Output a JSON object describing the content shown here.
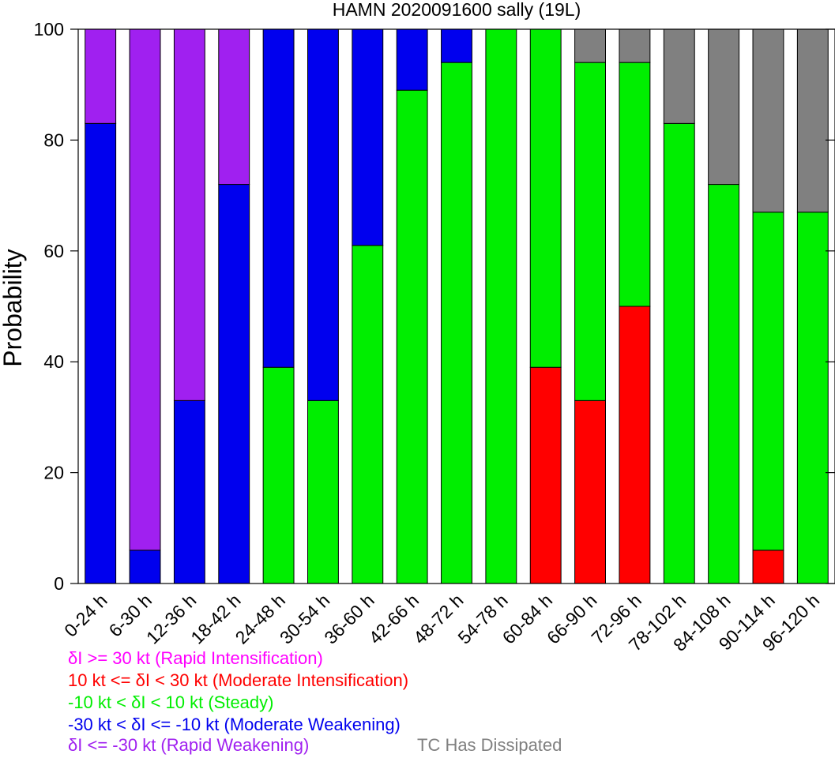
{
  "chart_data": {
    "type": "bar",
    "stacked": true,
    "title": "HAMN 2020091600 sally (19L)",
    "ylabel": "Probability",
    "xlabel": "",
    "ylim": [
      0,
      100
    ],
    "yticks": [
      0,
      20,
      40,
      60,
      80,
      100
    ],
    "categories": [
      "0-24 h",
      "6-30 h",
      "12-36 h",
      "18-42 h",
      "24-48 h",
      "30-54 h",
      "36-60 h",
      "42-66 h",
      "48-72 h",
      "54-78 h",
      "60-84 h",
      "66-90 h",
      "72-96 h",
      "78-102 h",
      "84-108 h",
      "90-114 h",
      "96-120 h"
    ],
    "series": [
      {
        "key": "moderate_intensification",
        "color": "#ff0000",
        "values": [
          0,
          0,
          0,
          0,
          0,
          0,
          0,
          0,
          0,
          0,
          39,
          33,
          50,
          0,
          0,
          6,
          0
        ]
      },
      {
        "key": "steady",
        "color": "#00ee00",
        "values": [
          0,
          0,
          0,
          0,
          39,
          33,
          61,
          89,
          94,
          100,
          61,
          61,
          44,
          83,
          72,
          61,
          67
        ]
      },
      {
        "key": "moderate_weakening",
        "color": "#0000ee",
        "values": [
          83,
          6,
          33,
          72,
          61,
          67,
          39,
          11,
          6,
          0,
          0,
          0,
          0,
          0,
          0,
          0,
          0
        ]
      },
      {
        "key": "rapid_weakening",
        "color": "#a020f0",
        "values": [
          17,
          94,
          67,
          28,
          0,
          0,
          0,
          0,
          0,
          0,
          0,
          0,
          0,
          0,
          0,
          0,
          0
        ]
      },
      {
        "key": "dissipated",
        "color": "#808080",
        "values": [
          0,
          0,
          0,
          0,
          0,
          0,
          0,
          0,
          0,
          0,
          0,
          6,
          6,
          17,
          28,
          33,
          33
        ]
      }
    ],
    "legend": [
      {
        "text": "δI >= 30 kt (Rapid Intensification)",
        "color": "#ff00ff"
      },
      {
        "text": "10 kt <= δI < 30 kt (Moderate Intensification)",
        "color": "#ff0000"
      },
      {
        "text": "-10 kt < δI < 10 kt (Steady)",
        "color": "#00ee00"
      },
      {
        "text": "-30 kt < δI <= -10 kt (Moderate Weakening)",
        "color": "#0000ee"
      },
      {
        "text": "δI <= -30 kt (Rapid Weakening)",
        "color": "#a020f0"
      },
      {
        "text": "TC Has Dissipated",
        "color": "#808080"
      }
    ]
  }
}
